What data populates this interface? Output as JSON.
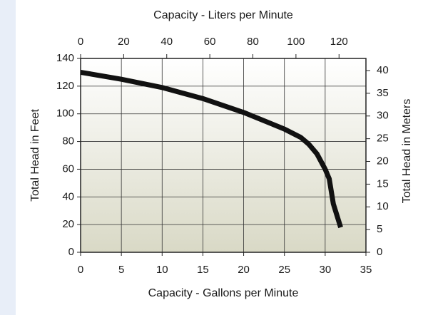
{
  "chart_data": {
    "type": "line",
    "x_title": "Capacity - Gallons per Minute",
    "x2_title": "Capacity - Liters per Minute",
    "y_title": "Total Head in Feet",
    "y2_title": "Total Head in Meters",
    "x": [
      0,
      5,
      10,
      15,
      20,
      25,
      27,
      28,
      29,
      30,
      30.5,
      31,
      31.9
    ],
    "series": [
      {
        "color": "#111111",
        "values": [
          130,
          125,
          119,
          111,
          101,
          89,
          83,
          78,
          71,
          60,
          53,
          35,
          18
        ]
      }
    ],
    "xlim": [
      0,
      35
    ],
    "xticks": [
      0,
      5,
      10,
      15,
      20,
      25,
      30,
      35
    ],
    "ylim": [
      0,
      140
    ],
    "yticks": [
      0,
      20,
      40,
      60,
      80,
      100,
      120,
      140
    ],
    "x2lim": [
      0,
      132.5
    ],
    "x2ticks": [
      0,
      20,
      40,
      60,
      80,
      100,
      120
    ],
    "y2lim": [
      0,
      42.67
    ],
    "y2ticks": [
      0,
      5,
      10,
      15,
      20,
      25,
      30,
      35,
      40
    ],
    "grid": true
  }
}
